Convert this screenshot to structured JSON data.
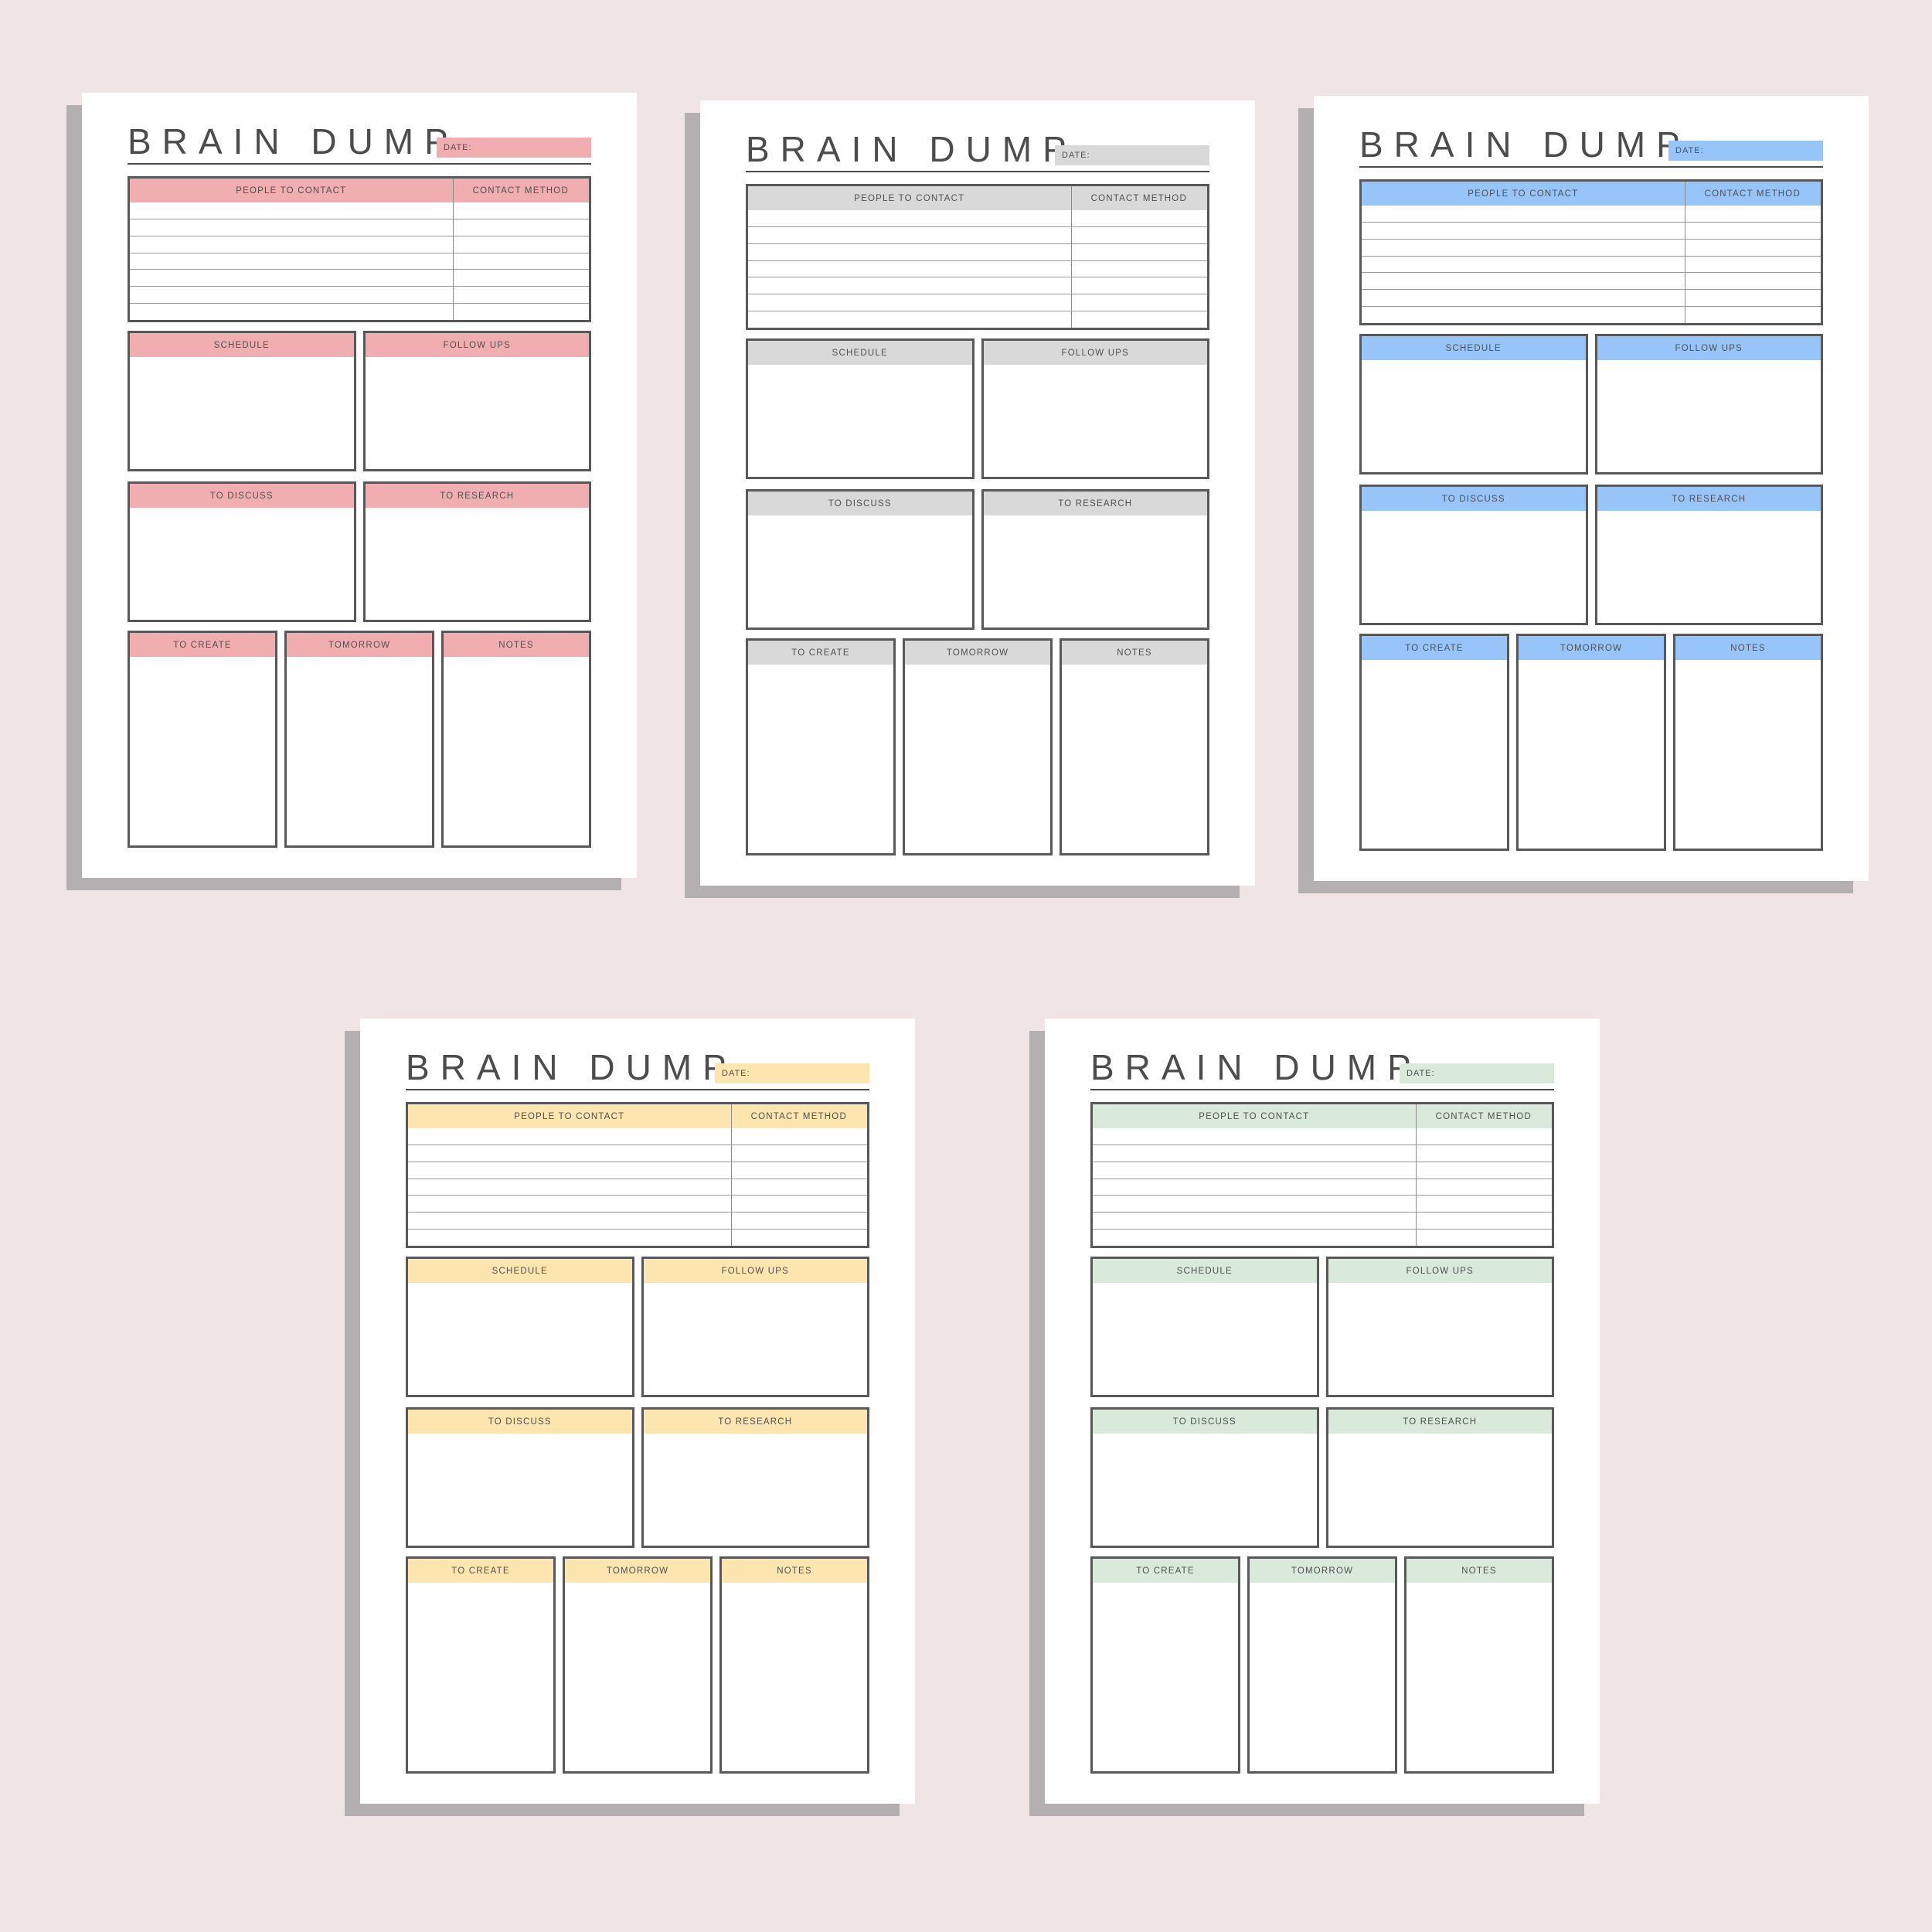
{
  "colors": {
    "background": "#f0e4e4",
    "page": "#ffffff",
    "shadow": "#b4b0b1",
    "border": "#57585a",
    "row_line": "#9b9b9b",
    "text": "#4f4f4f",
    "title_text": "#4c4c4c"
  },
  "template": {
    "title": "BRAIN DUMP",
    "date_label": "DATE:",
    "table": {
      "col1": "PEOPLE TO CONTACT",
      "col2": "CONTACT METHOD",
      "rows": 7
    },
    "sections": {
      "schedule": "SCHEDULE",
      "follow_ups": "FOLLOW UPS",
      "to_discuss": "TO DISCUSS",
      "to_research": "TO RESEARCH",
      "to_create": "TO CREATE",
      "tomorrow": "TOMORROW",
      "notes": "NOTES"
    }
  },
  "planners": [
    {
      "name": "pink",
      "accent_color": "#f1aeb1"
    },
    {
      "name": "gray",
      "accent_color": "#d9d9d9"
    },
    {
      "name": "blue",
      "accent_color": "#97c5fa"
    },
    {
      "name": "yellow",
      "accent_color": "#fde5b0"
    },
    {
      "name": "green",
      "accent_color": "#d9e9da"
    }
  ]
}
